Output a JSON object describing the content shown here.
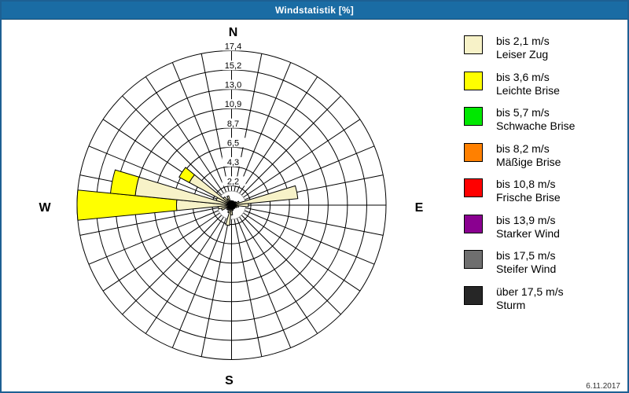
{
  "window": {
    "title": "Windstatistik [%]",
    "date": "6.11.2017"
  },
  "colors": {
    "titlebar": "#1a6ca4",
    "frame": "#1d6093",
    "grid": "#000000",
    "background": "#ffffff"
  },
  "chart_data": {
    "type": "windrose",
    "title": "Windstatistik [%]",
    "units": "percent",
    "rings": 8,
    "rmax": 17.4,
    "ring_labels": [
      "2,2",
      "4,3",
      "6,5",
      "8,7",
      "10,9",
      "13,0",
      "15,2",
      "17,4"
    ],
    "compass": {
      "n": "N",
      "e": "E",
      "s": "S",
      "w": "W"
    },
    "sector_width_deg": 11.25,
    "speed_classes": [
      {
        "label": "bis 2,1 m/s",
        "name": "Leiser Zug",
        "color": "#f7f2c8"
      },
      {
        "label": "bis 3,6 m/s",
        "name": "Leichte Brise",
        "color": "#ffff00"
      },
      {
        "label": "bis 5,7 m/s",
        "name": "Schwache Brise",
        "color": "#00e800"
      },
      {
        "label": "bis 8,2 m/s",
        "name": "Mäßige Brise",
        "color": "#ff8000"
      },
      {
        "label": "bis 10,8 m/s",
        "name": "Frische Brise",
        "color": "#ff0000"
      },
      {
        "label": "bis 13,9 m/s",
        "name": "Starker Wind",
        "color": "#8a0090"
      },
      {
        "label": "bis 17,5 m/s",
        "name": "Steifer Wind",
        "color": "#6f6f6f"
      },
      {
        "label": "über 17,5 m/s",
        "name": "Sturm",
        "color": "#262626"
      }
    ],
    "petals_note": "values = [% bis 2,1 m/s, % bis 3,6 m/s]; higher speed classes are 0 everywhere; dir = compass degrees clockwise from N",
    "petals": [
      {
        "dir": 0.0,
        "values": [
          0.5,
          0
        ]
      },
      {
        "dir": 11.25,
        "values": [
          0.4,
          0
        ]
      },
      {
        "dir": 22.5,
        "values": [
          0.5,
          0
        ]
      },
      {
        "dir": 33.75,
        "values": [
          0.4,
          0
        ]
      },
      {
        "dir": 45.0,
        "values": [
          0.5,
          0
        ]
      },
      {
        "dir": 56.25,
        "values": [
          0.6,
          0
        ]
      },
      {
        "dir": 67.5,
        "values": [
          0.9,
          0
        ]
      },
      {
        "dir": 78.75,
        "values": [
          7.5,
          0
        ]
      },
      {
        "dir": 90.0,
        "values": [
          1.9,
          0
        ]
      },
      {
        "dir": 101.25,
        "values": [
          0.8,
          0
        ]
      },
      {
        "dir": 112.5,
        "values": [
          0.6,
          0
        ]
      },
      {
        "dir": 123.75,
        "values": [
          0.4,
          0
        ]
      },
      {
        "dir": 135.0,
        "values": [
          0.5,
          0
        ]
      },
      {
        "dir": 146.25,
        "values": [
          0.4,
          0
        ]
      },
      {
        "dir": 157.5,
        "values": [
          0.5,
          0
        ]
      },
      {
        "dir": 168.75,
        "values": [
          0.6,
          0
        ]
      },
      {
        "dir": 180.0,
        "values": [
          1.1,
          0
        ]
      },
      {
        "dir": 191.25,
        "values": [
          2.3,
          0
        ]
      },
      {
        "dir": 202.5,
        "values": [
          0.9,
          0
        ]
      },
      {
        "dir": 213.75,
        "values": [
          0.6,
          0
        ]
      },
      {
        "dir": 225.0,
        "values": [
          0.7,
          0
        ]
      },
      {
        "dir": 236.25,
        "values": [
          0.6,
          0
        ]
      },
      {
        "dir": 247.5,
        "values": [
          1.2,
          0
        ]
      },
      {
        "dir": 258.75,
        "values": [
          1.5,
          0
        ]
      },
      {
        "dir": 270.0,
        "values": [
          6.2,
          11.2
        ]
      },
      {
        "dir": 281.25,
        "values": [
          10.9,
          2.8
        ]
      },
      {
        "dir": 292.5,
        "values": [
          1.8,
          0
        ]
      },
      {
        "dir": 303.75,
        "values": [
          5.4,
          1.3
        ]
      },
      {
        "dir": 315.0,
        "values": [
          1.2,
          0
        ]
      },
      {
        "dir": 326.25,
        "values": [
          0.8,
          0
        ]
      },
      {
        "dir": 337.5,
        "values": [
          1.1,
          0
        ]
      },
      {
        "dir": 348.75,
        "values": [
          0.5,
          0
        ]
      }
    ]
  },
  "legend": {
    "items": [
      {
        "line1": "bis 2,1 m/s",
        "line2": "Leiser Zug",
        "color": "#f7f2c8"
      },
      {
        "line1": "bis 3,6 m/s",
        "line2": "Leichte Brise",
        "color": "#ffff00"
      },
      {
        "line1": "bis 5,7 m/s",
        "line2": "Schwache Brise",
        "color": "#00e800"
      },
      {
        "line1": "bis 8,2 m/s",
        "line2": "Mäßige Brise",
        "color": "#ff8000"
      },
      {
        "line1": "bis 10,8 m/s",
        "line2": "Frische Brise",
        "color": "#ff0000"
      },
      {
        "line1": "bis 13,9 m/s",
        "line2": "Starker Wind",
        "color": "#8a0090"
      },
      {
        "line1": "bis 17,5 m/s",
        "line2": "Steifer Wind",
        "color": "#6f6f6f"
      },
      {
        "line1": "über 17,5 m/s",
        "line2": "Sturm",
        "color": "#262626"
      }
    ]
  }
}
